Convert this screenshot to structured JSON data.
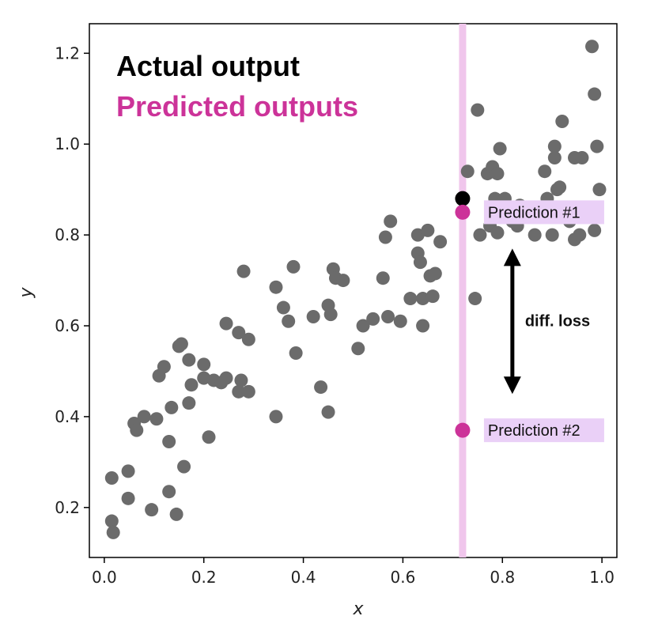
{
  "chart_data": {
    "type": "scatter",
    "xlabel": "x",
    "ylabel": "y",
    "xlim": [
      -0.03,
      1.03
    ],
    "ylim": [
      0.09,
      1.265
    ],
    "xticks": [
      0.0,
      0.2,
      0.4,
      0.6,
      0.8,
      1.0
    ],
    "yticks": [
      0.2,
      0.4,
      0.6,
      0.8,
      1.0,
      1.2
    ],
    "xtick_labels": [
      "0.0",
      "0.2",
      "0.4",
      "0.6",
      "0.8",
      "1.0"
    ],
    "ytick_labels": [
      "0.2",
      "0.4",
      "0.6",
      "0.8",
      "1.0",
      "1.2"
    ],
    "grid": false,
    "colors": {
      "data": "#6b6b6b",
      "actual": "#000000",
      "predicted": "#cc3399",
      "vline": "#f0c6ec",
      "label_bg": "#ead0f7"
    },
    "legend": {
      "actual": "Actual output",
      "predicted": "Predicted outputs",
      "placement": "top-left"
    },
    "vline_x": 0.72,
    "actual_point": {
      "x": 0.72,
      "y": 0.88
    },
    "predictions": [
      {
        "label": "Prediction #1",
        "x": 0.72,
        "y": 0.85
      },
      {
        "label": "Prediction #2",
        "x": 0.72,
        "y": 0.37
      }
    ],
    "annotation": {
      "text": "diff. loss",
      "x": 0.82,
      "y_top": 0.77,
      "y_bottom": 0.45
    },
    "points": [
      [
        0.015,
        0.17
      ],
      [
        0.018,
        0.145
      ],
      [
        0.015,
        0.265
      ],
      [
        0.048,
        0.28
      ],
      [
        0.048,
        0.22
      ],
      [
        0.06,
        0.385
      ],
      [
        0.065,
        0.37
      ],
      [
        0.08,
        0.4
      ],
      [
        0.095,
        0.195
      ],
      [
        0.11,
        0.49
      ],
      [
        0.105,
        0.395
      ],
      [
        0.12,
        0.51
      ],
      [
        0.13,
        0.345
      ],
      [
        0.13,
        0.235
      ],
      [
        0.135,
        0.42
      ],
      [
        0.145,
        0.185
      ],
      [
        0.15,
        0.555
      ],
      [
        0.155,
        0.56
      ],
      [
        0.16,
        0.29
      ],
      [
        0.17,
        0.43
      ],
      [
        0.17,
        0.525
      ],
      [
        0.175,
        0.47
      ],
      [
        0.2,
        0.485
      ],
      [
        0.2,
        0.515
      ],
      [
        0.21,
        0.355
      ],
      [
        0.22,
        0.48
      ],
      [
        0.235,
        0.475
      ],
      [
        0.245,
        0.485
      ],
      [
        0.245,
        0.605
      ],
      [
        0.27,
        0.585
      ],
      [
        0.27,
        0.455
      ],
      [
        0.275,
        0.48
      ],
      [
        0.28,
        0.72
      ],
      [
        0.29,
        0.455
      ],
      [
        0.29,
        0.57
      ],
      [
        0.345,
        0.685
      ],
      [
        0.345,
        0.4
      ],
      [
        0.36,
        0.64
      ],
      [
        0.37,
        0.61
      ],
      [
        0.38,
        0.73
      ],
      [
        0.385,
        0.54
      ],
      [
        0.42,
        0.62
      ],
      [
        0.435,
        0.465
      ],
      [
        0.45,
        0.41
      ],
      [
        0.45,
        0.645
      ],
      [
        0.455,
        0.625
      ],
      [
        0.46,
        0.725
      ],
      [
        0.465,
        0.705
      ],
      [
        0.48,
        0.7
      ],
      [
        0.51,
        0.55
      ],
      [
        0.52,
        0.6
      ],
      [
        0.54,
        0.615
      ],
      [
        0.56,
        0.705
      ],
      [
        0.565,
        0.795
      ],
      [
        0.57,
        0.62
      ],
      [
        0.575,
        0.83
      ],
      [
        0.595,
        0.61
      ],
      [
        0.615,
        0.66
      ],
      [
        0.63,
        0.8
      ],
      [
        0.63,
        0.76
      ],
      [
        0.635,
        0.74
      ],
      [
        0.64,
        0.66
      ],
      [
        0.64,
        0.6
      ],
      [
        0.65,
        0.81
      ],
      [
        0.655,
        0.71
      ],
      [
        0.66,
        0.665
      ],
      [
        0.665,
        0.715
      ],
      [
        0.675,
        0.785
      ],
      [
        0.73,
        0.94
      ],
      [
        0.745,
        0.66
      ],
      [
        0.75,
        1.075
      ],
      [
        0.755,
        0.8
      ],
      [
        0.77,
        0.935
      ],
      [
        0.775,
        0.82
      ],
      [
        0.78,
        0.95
      ],
      [
        0.785,
        0.88
      ],
      [
        0.79,
        0.805
      ],
      [
        0.79,
        0.935
      ],
      [
        0.795,
        0.99
      ],
      [
        0.805,
        0.88
      ],
      [
        0.82,
        0.83
      ],
      [
        0.83,
        0.82
      ],
      [
        0.835,
        0.865
      ],
      [
        0.845,
        0.84
      ],
      [
        0.865,
        0.8
      ],
      [
        0.87,
        0.845
      ],
      [
        0.885,
        0.94
      ],
      [
        0.89,
        0.88
      ],
      [
        0.9,
        0.8
      ],
      [
        0.905,
        0.97
      ],
      [
        0.905,
        0.995
      ],
      [
        0.91,
        0.9
      ],
      [
        0.915,
        0.905
      ],
      [
        0.92,
        1.05
      ],
      [
        0.92,
        0.855
      ],
      [
        0.935,
        0.83
      ],
      [
        0.945,
        0.79
      ],
      [
        0.945,
        0.97
      ],
      [
        0.955,
        0.8
      ],
      [
        0.96,
        0.97
      ],
      [
        0.98,
        1.215
      ],
      [
        0.985,
        1.11
      ],
      [
        0.985,
        0.81
      ],
      [
        0.99,
        0.995
      ],
      [
        0.995,
        0.9
      ]
    ]
  }
}
